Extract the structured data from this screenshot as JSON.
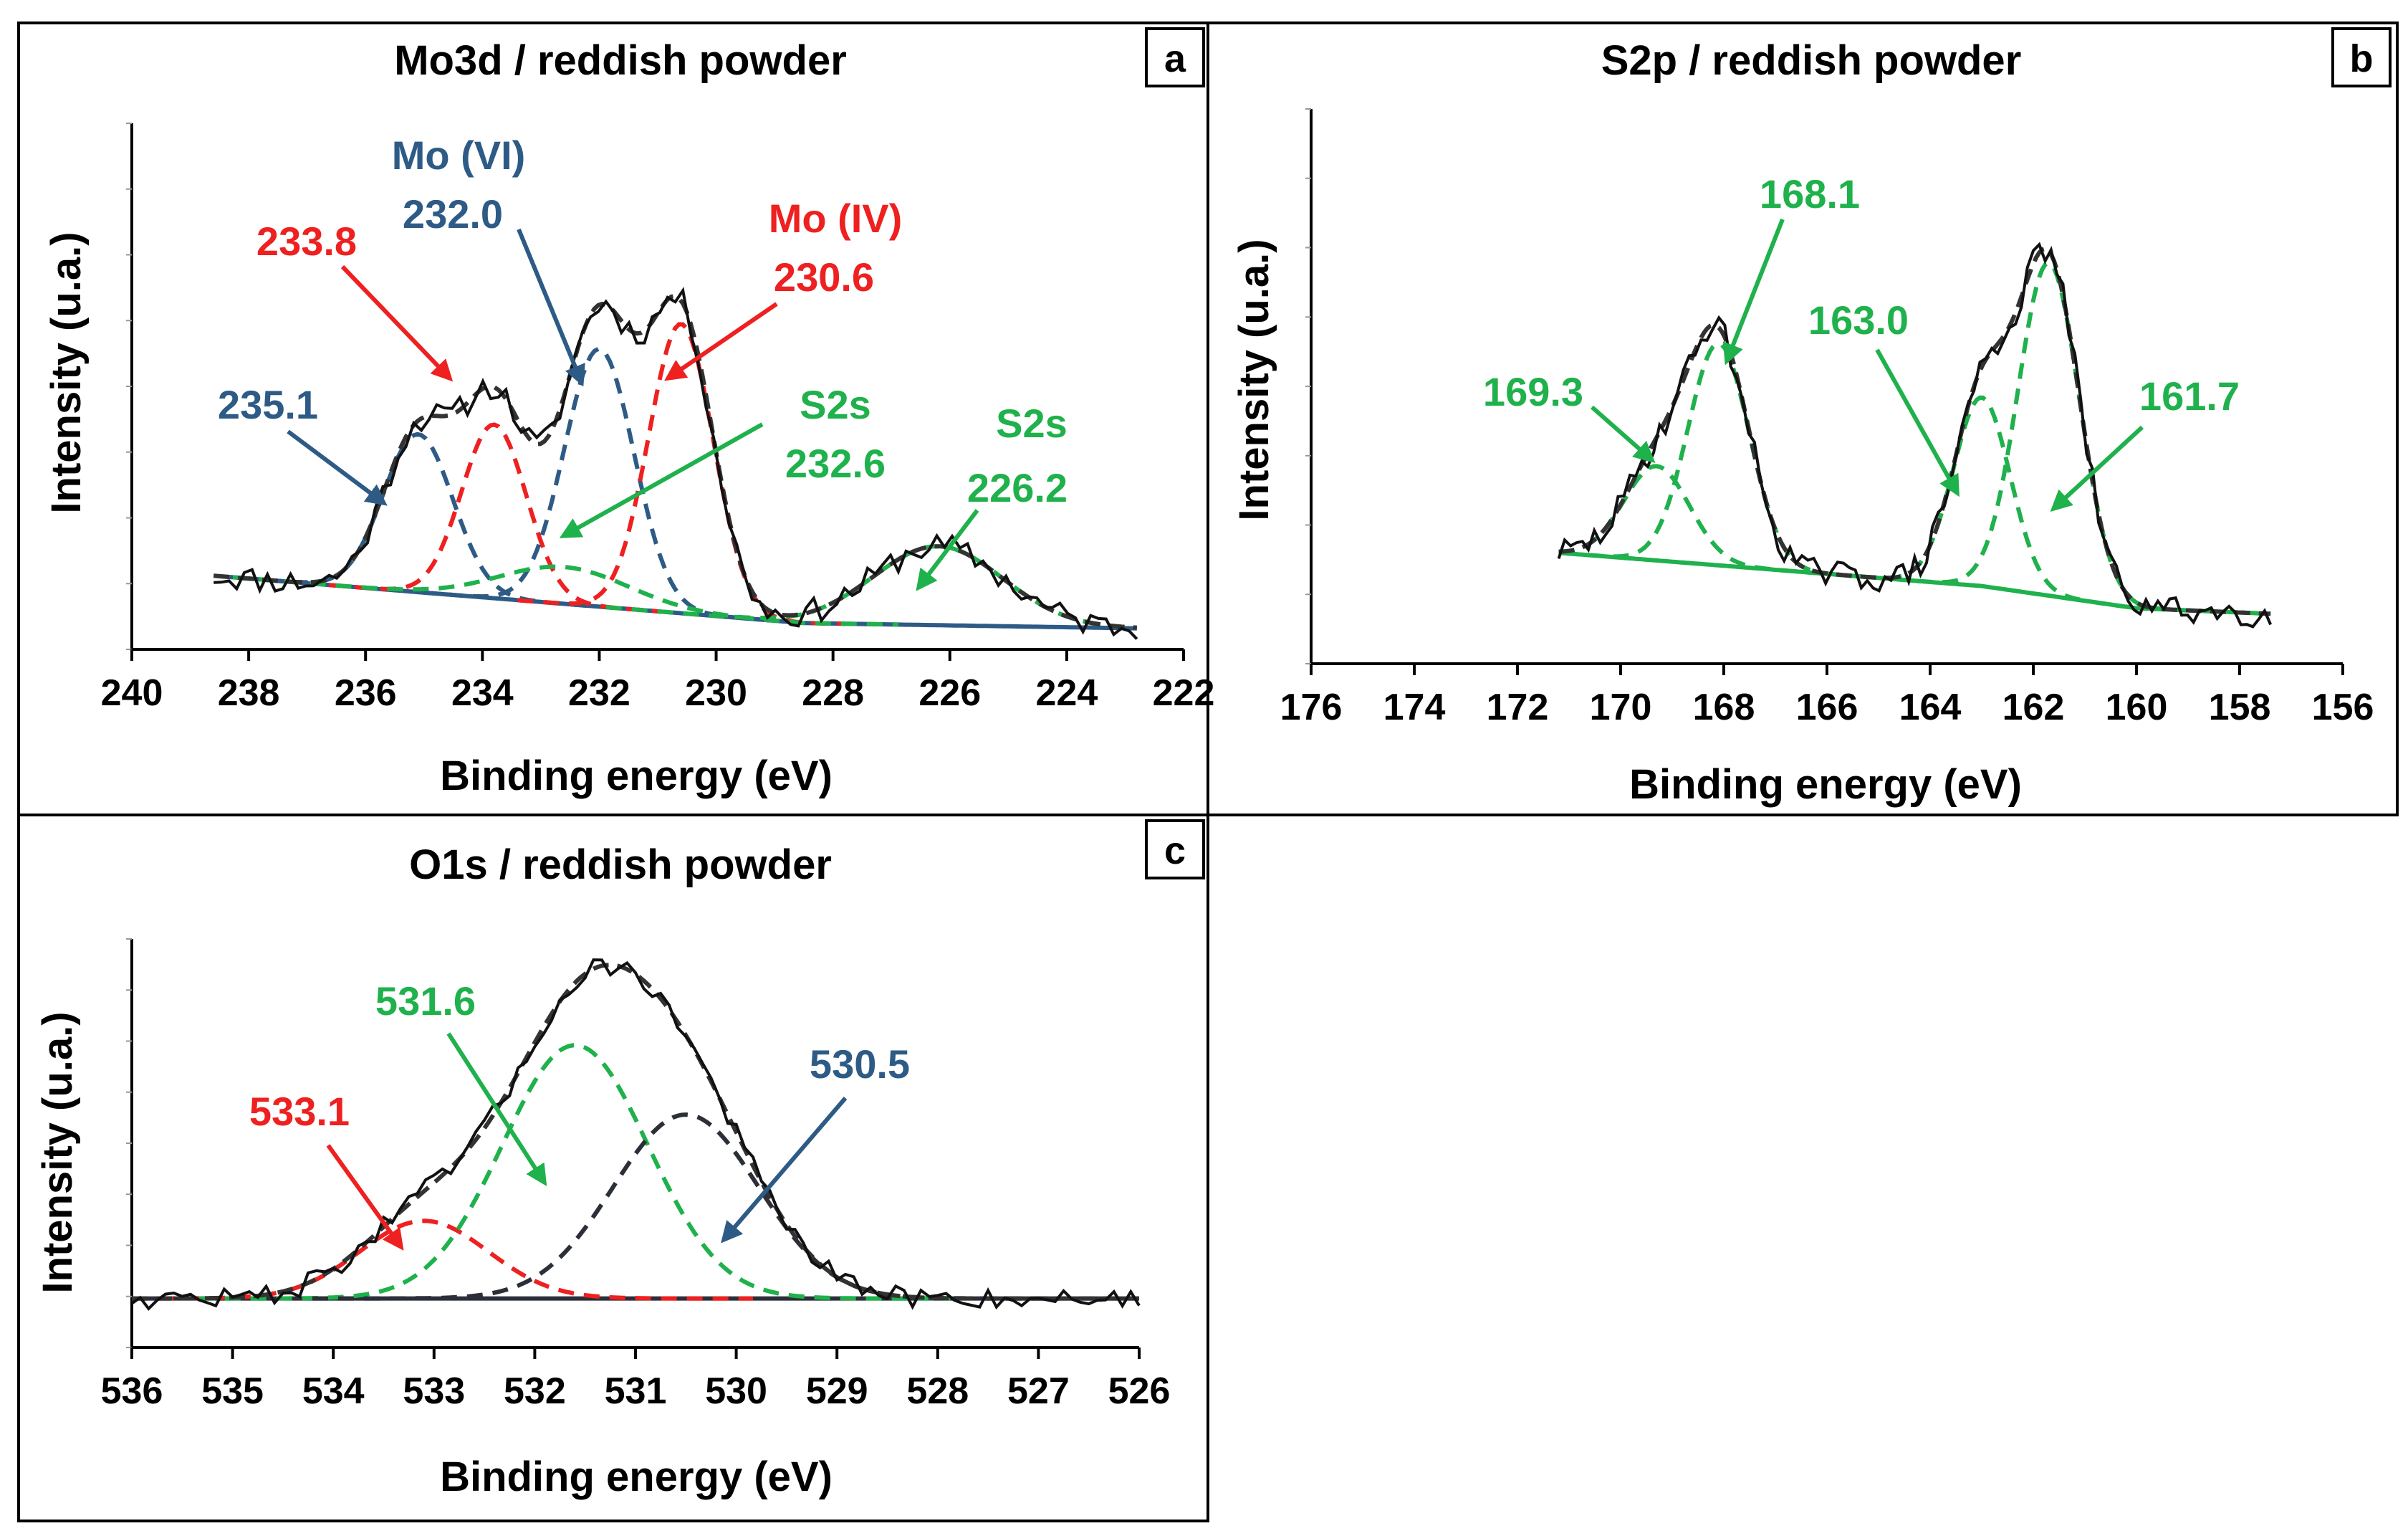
{
  "figure": {
    "colors": {
      "measured": "#111111",
      "envelope": "#333333",
      "blue": "#2e5b86",
      "red": "#ee2020",
      "green": "#1fb14c",
      "darkgrey": "#2b2f38",
      "frame": "#000000"
    }
  },
  "chart_data": [
    {
      "id": "a",
      "type": "line",
      "title": "Mo3d / reddish powder",
      "panel_label": "a",
      "xlabel": "Binding energy (eV)",
      "ylabel": "Intensity (u.a.)",
      "xlim": [
        240,
        222
      ],
      "xticks": [
        240,
        238,
        236,
        234,
        232,
        230,
        228,
        226,
        224,
        222
      ],
      "ylim": [
        0,
        1.0
      ],
      "x_range": [
        238.6,
        222.8
      ],
      "baseline": {
        "type": "linear",
        "points": [
          [
            238.6,
            0.14
          ],
          [
            228.5,
            0.05
          ],
          [
            222.8,
            0.04
          ]
        ],
        "color": "blue"
      },
      "components": [
        {
          "center": 235.1,
          "height": 0.3,
          "fwhm": 1.4,
          "color": "blue",
          "label": "235.1"
        },
        {
          "center": 233.8,
          "height": 0.33,
          "fwhm": 1.3,
          "color": "red",
          "label": "233.8"
        },
        {
          "center": 232.0,
          "height": 0.49,
          "fwhm": 1.4,
          "color": "blue",
          "label": "Mo (VI) 232.0"
        },
        {
          "center": 230.6,
          "height": 0.55,
          "fwhm": 1.3,
          "color": "red",
          "label": "Mo (IV) 230.6"
        },
        {
          "center": 232.6,
          "height": 0.07,
          "fwhm": 2.6,
          "color": "green",
          "label": "S2s 232.6"
        },
        {
          "center": 226.2,
          "height": 0.15,
          "fwhm": 2.6,
          "color": "green",
          "label": "S2s 226.2"
        }
      ],
      "annotations": [
        {
          "lines": [
            "235.1"
          ],
          "color": "blue"
        },
        {
          "lines": [
            "233.8"
          ],
          "color": "red"
        },
        {
          "lines": [
            "Mo (VI)",
            "232.0"
          ],
          "color": "blue"
        },
        {
          "lines": [
            "Mo (IV)",
            "230.6"
          ],
          "color": "red"
        },
        {
          "lines": [
            "S2s",
            "232.6"
          ],
          "color": "green"
        },
        {
          "lines": [
            "S2s",
            "226.2"
          ],
          "color": "green"
        }
      ]
    },
    {
      "id": "b",
      "type": "line",
      "title": "S2p / reddish powder",
      "panel_label": "b",
      "xlabel": "Binding energy (eV)",
      "ylabel": "Intensity (u.a.)",
      "xlim": [
        176,
        156
      ],
      "xticks": [
        176,
        174,
        172,
        170,
        168,
        166,
        164,
        162,
        160,
        158,
        156
      ],
      "ylim": [
        0,
        1.0
      ],
      "x_range": [
        171.2,
        157.4
      ],
      "baseline": {
        "type": "linear",
        "points": [
          [
            171.2,
            0.2
          ],
          [
            163.0,
            0.14
          ],
          [
            160.0,
            0.1
          ],
          [
            157.4,
            0.09
          ]
        ],
        "color": "green"
      },
      "components": [
        {
          "center": 169.3,
          "height": 0.17,
          "fwhm": 1.5,
          "color": "green",
          "label": "169.3"
        },
        {
          "center": 168.1,
          "height": 0.4,
          "fwhm": 1.4,
          "color": "green",
          "label": "168.1"
        },
        {
          "center": 163.0,
          "height": 0.34,
          "fwhm": 1.3,
          "color": "green",
          "label": "163.0"
        },
        {
          "center": 161.7,
          "height": 0.6,
          "fwhm": 1.4,
          "color": "green",
          "label": "161.7"
        }
      ],
      "annotations": [
        {
          "lines": [
            "169.3"
          ],
          "color": "green"
        },
        {
          "lines": [
            "168.1"
          ],
          "color": "green"
        },
        {
          "lines": [
            "163.0"
          ],
          "color": "green"
        },
        {
          "lines": [
            "161.7"
          ],
          "color": "green"
        }
      ]
    },
    {
      "id": "c",
      "type": "line",
      "title": "O1s / reddish powder",
      "panel_label": "c",
      "xlabel": "Binding energy (eV)",
      "ylabel": "Intensity (u.a.)",
      "xlim": [
        536,
        526
      ],
      "xticks": [
        536,
        535,
        534,
        533,
        532,
        531,
        530,
        529,
        528,
        527,
        526
      ],
      "ylim": [
        0,
        1.0
      ],
      "x_range": [
        536,
        526
      ],
      "baseline": {
        "type": "linear",
        "points": [
          [
            536,
            0.12
          ],
          [
            526,
            0.12
          ]
        ],
        "color": "darkgrey"
      },
      "components": [
        {
          "center": 533.1,
          "height": 0.19,
          "fwhm": 1.5,
          "color": "red",
          "label": "533.1"
        },
        {
          "center": 531.6,
          "height": 0.62,
          "fwhm": 1.7,
          "color": "green",
          "label": "531.6"
        },
        {
          "center": 530.5,
          "height": 0.45,
          "fwhm": 1.7,
          "color": "darkgrey",
          "label": "530.5"
        }
      ],
      "annotations": [
        {
          "lines": [
            "533.1"
          ],
          "color": "red"
        },
        {
          "lines": [
            "531.6"
          ],
          "color": "green"
        },
        {
          "lines": [
            "530.5"
          ],
          "color": "blue"
        }
      ]
    }
  ]
}
